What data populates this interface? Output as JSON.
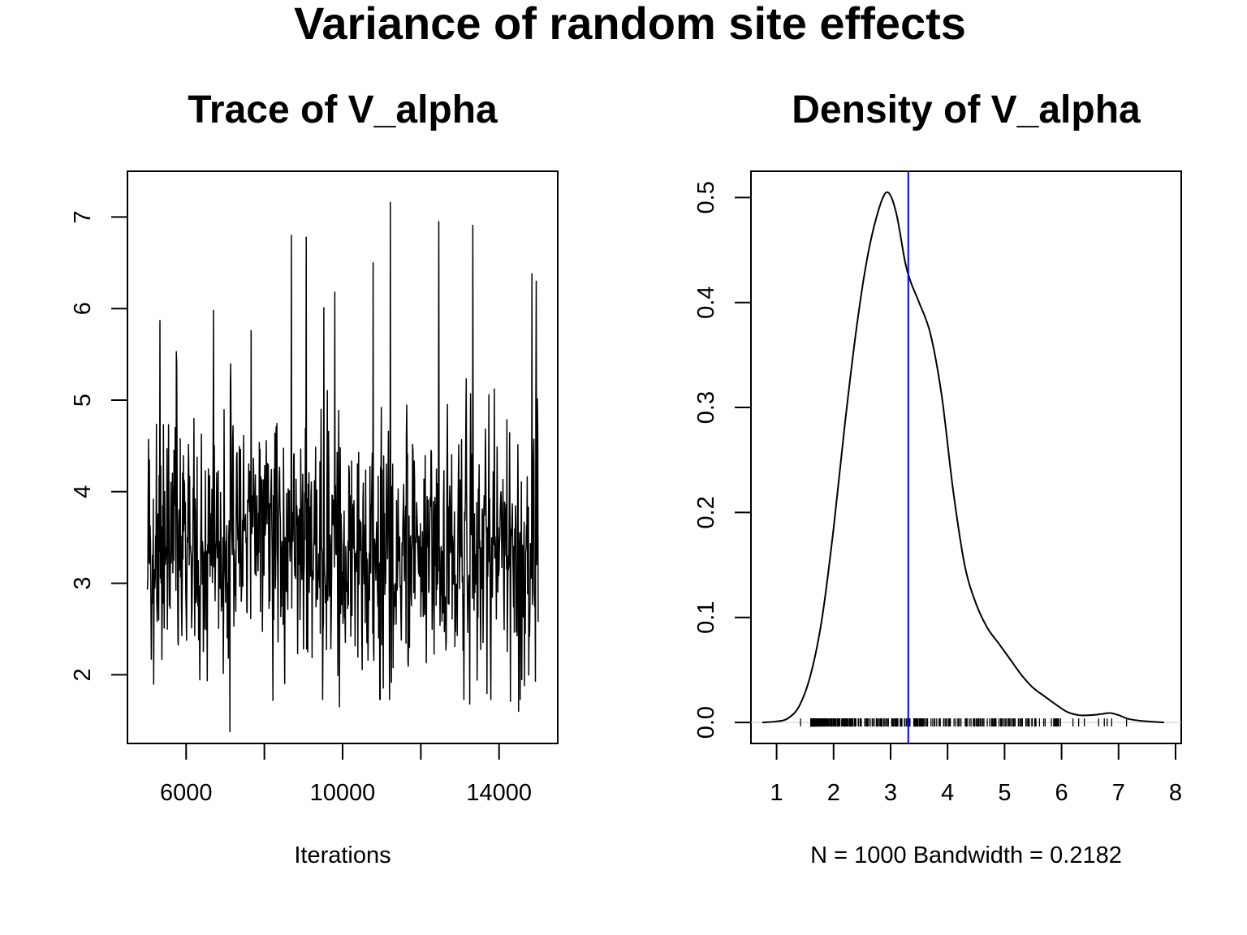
{
  "figure": {
    "title": "Variance of random site effects"
  },
  "chart_data": [
    {
      "type": "line",
      "title": "Trace of V_alpha",
      "xlabel": "Iterations",
      "ylabel": "",
      "xlim": [
        4500,
        15500
      ],
      "ylim": [
        1.25,
        7.5
      ],
      "x_ticks": [
        6000,
        8000,
        10000,
        12000,
        14000
      ],
      "x_tick_labels": [
        "6000",
        "",
        "10000",
        "",
        "14000"
      ],
      "y_ticks": [
        2,
        3,
        4,
        5,
        6,
        7
      ],
      "y_tick_labels": [
        "2",
        "3",
        "4",
        "5",
        "6",
        "7"
      ],
      "grid": false,
      "series": [
        {
          "x_start": 5010,
          "x_end": 15000,
          "x_step": 10,
          "n": 1000,
          "sample_min": 1.38,
          "sample_max": 7.16,
          "sample_center": 3.3,
          "highlight_points": [
            {
              "x": 5040,
              "y": 4.57
            },
            {
              "x": 5330,
              "y": 5.87
            },
            {
              "x": 5750,
              "y": 5.53
            },
            {
              "x": 6700,
              "y": 5.98
            },
            {
              "x": 7120,
              "y": 1.38
            },
            {
              "x": 7660,
              "y": 5.76
            },
            {
              "x": 8220,
              "y": 1.72
            },
            {
              "x": 8690,
              "y": 6.8
            },
            {
              "x": 9070,
              "y": 6.78
            },
            {
              "x": 9520,
              "y": 6.01
            },
            {
              "x": 9800,
              "y": 6.18
            },
            {
              "x": 9920,
              "y": 1.65
            },
            {
              "x": 10780,
              "y": 6.5
            },
            {
              "x": 11220,
              "y": 7.16
            },
            {
              "x": 11200,
              "y": 1.73
            },
            {
              "x": 12460,
              "y": 6.95
            },
            {
              "x": 13250,
              "y": 1.68
            },
            {
              "x": 13330,
              "y": 6.91
            },
            {
              "x": 14290,
              "y": 1.71
            },
            {
              "x": 14500,
              "y": 1.6
            },
            {
              "x": 14840,
              "y": 6.38
            },
            {
              "x": 14950,
              "y": 6.3
            },
            {
              "x": 14930,
              "y": 1.93
            }
          ]
        }
      ]
    },
    {
      "type": "line",
      "title": "Density of V_alpha",
      "xlabel": "N = 1000   Bandwidth = 0.2182",
      "ylabel": "",
      "xlim": [
        0.55,
        8.1
      ],
      "ylim": [
        -0.02,
        0.525
      ],
      "x_ticks": [
        1,
        2,
        3,
        4,
        5,
        6,
        7,
        8
      ],
      "x_tick_labels": [
        "1",
        "2",
        "3",
        "4",
        "5",
        "6",
        "7",
        "8"
      ],
      "y_ticks": [
        0.0,
        0.1,
        0.2,
        0.3,
        0.4,
        0.5
      ],
      "y_tick_labels": [
        "0.0",
        "0.1",
        "0.2",
        "0.3",
        "0.4",
        "0.5"
      ],
      "grid": false,
      "series": [
        {
          "x": [
            0.75,
            1.0,
            1.2,
            1.4,
            1.6,
            1.8,
            2.0,
            2.2,
            2.4,
            2.6,
            2.8,
            2.95,
            3.1,
            3.25,
            3.35,
            3.5,
            3.7,
            3.9,
            4.1,
            4.3,
            4.5,
            4.7,
            4.9,
            5.1,
            5.3,
            5.5,
            5.7,
            5.9,
            6.1,
            6.3,
            6.5,
            6.7,
            6.85,
            7.0,
            7.2,
            7.5,
            7.8
          ],
          "y": [
            0.0,
            0.001,
            0.004,
            0.016,
            0.046,
            0.1,
            0.185,
            0.285,
            0.375,
            0.445,
            0.49,
            0.505,
            0.485,
            0.44,
            0.42,
            0.4,
            0.37,
            0.31,
            0.22,
            0.15,
            0.113,
            0.09,
            0.075,
            0.06,
            0.045,
            0.033,
            0.025,
            0.017,
            0.01,
            0.007,
            0.007,
            0.008,
            0.009,
            0.007,
            0.003,
            0.001,
            0.0
          ]
        }
      ],
      "vline": {
        "x": 3.31,
        "color": "#0000ff"
      },
      "rug": {
        "n": 1000,
        "dense_range": [
          1.6,
          6.0
        ],
        "outliers": [
          1.42,
          6.2,
          6.3,
          6.4,
          6.65,
          6.75,
          6.8,
          6.88,
          7.14
        ]
      }
    }
  ]
}
